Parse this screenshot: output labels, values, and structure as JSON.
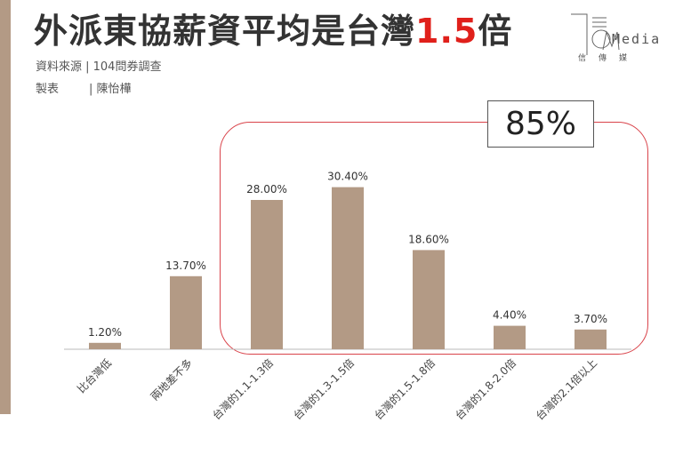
{
  "header": {
    "title_main": "外派東協薪資平均是台灣",
    "title_highlight": "1.5",
    "title_suffix": "倍",
    "source": "資料來源 | 104問券調查",
    "author_label": "製表",
    "author": "| 陳怡樺"
  },
  "logo": {
    "text": "Media",
    "sub": "信傳媒"
  },
  "callout": {
    "value": "85%"
  },
  "colors": {
    "bar": "#b39a85",
    "highlight": "#e0201b",
    "frame": "#d9434a"
  },
  "chart_data": {
    "type": "bar",
    "categories": [
      "比台灣低",
      "兩地差不多",
      "台灣的1.1-1.3倍",
      "台灣的1.3-1.5倍",
      "台灣的1.5-1.8倍",
      "台灣的1.8-2.0倍",
      "台灣的2.1倍以上"
    ],
    "values": [
      1.2,
      13.7,
      28.0,
      30.4,
      18.6,
      4.4,
      3.7
    ],
    "data_labels": [
      "1.20%",
      "13.70%",
      "28.00%",
      "30.40%",
      "18.60%",
      "4.40%",
      "3.70%"
    ],
    "ylim": [
      0,
      32
    ],
    "grid": false
  }
}
